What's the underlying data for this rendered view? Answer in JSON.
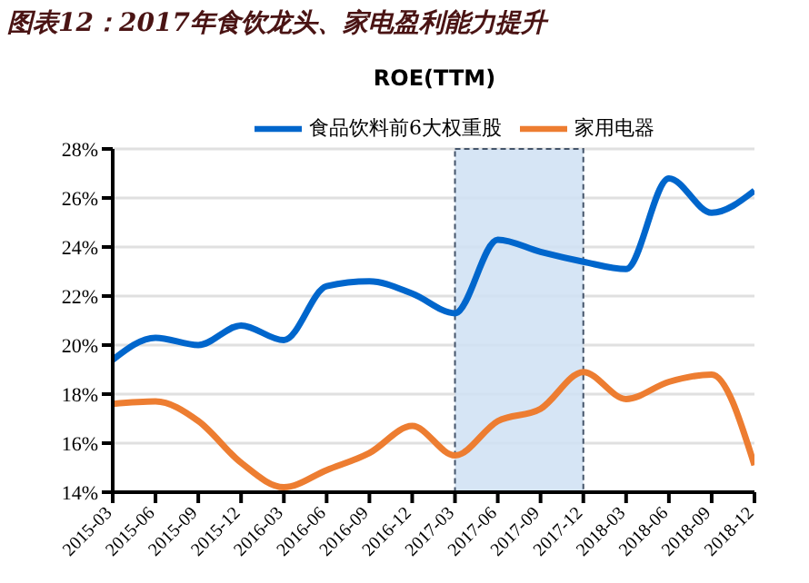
{
  "chart_data": {
    "type": "line",
    "title": "图表12：2017年食饮龙头、家电盈利能力提升",
    "subtitle": "ROE(TTM)",
    "categories": [
      "2015-03",
      "2015-06",
      "2015-09",
      "2015-12",
      "2016-03",
      "2016-06",
      "2016-09",
      "2016-12",
      "2017-03",
      "2017-06",
      "2017-09",
      "2017-12",
      "2018-03",
      "2018-06",
      "2018-09",
      "2018-12"
    ],
    "series": [
      {
        "name": "食品饮料前6大权重股",
        "color": "#0066cc",
        "values": [
          19.4,
          20.3,
          20.0,
          20.8,
          20.2,
          22.4,
          22.6,
          22.1,
          21.3,
          24.3,
          23.8,
          23.4,
          23.1,
          26.8,
          25.4,
          26.3
        ]
      },
      {
        "name": "家用电器",
        "color": "#ed7d31",
        "values": [
          17.6,
          17.7,
          16.9,
          15.2,
          14.2,
          14.9,
          15.6,
          16.7,
          15.5,
          16.9,
          17.4,
          18.9,
          17.8,
          18.5,
          18.8,
          15.1
        ]
      }
    ],
    "ylim": [
      14,
      28
    ],
    "yticks": [
      {
        "value": 14,
        "label": "14%"
      },
      {
        "value": 16,
        "label": "16%"
      },
      {
        "value": 18,
        "label": "18%"
      },
      {
        "value": 20,
        "label": "20%"
      },
      {
        "value": 22,
        "label": "22%"
      },
      {
        "value": 24,
        "label": "24%"
      },
      {
        "value": 26,
        "label": "26%"
      },
      {
        "value": 28,
        "label": "28%"
      }
    ],
    "bands": [
      {
        "axis": "x",
        "from": "2017-03",
        "to": "2017-12",
        "color": "#cfe0f3"
      }
    ],
    "grid": "y",
    "legend": "top",
    "marker": "none",
    "line_style": "solid"
  }
}
